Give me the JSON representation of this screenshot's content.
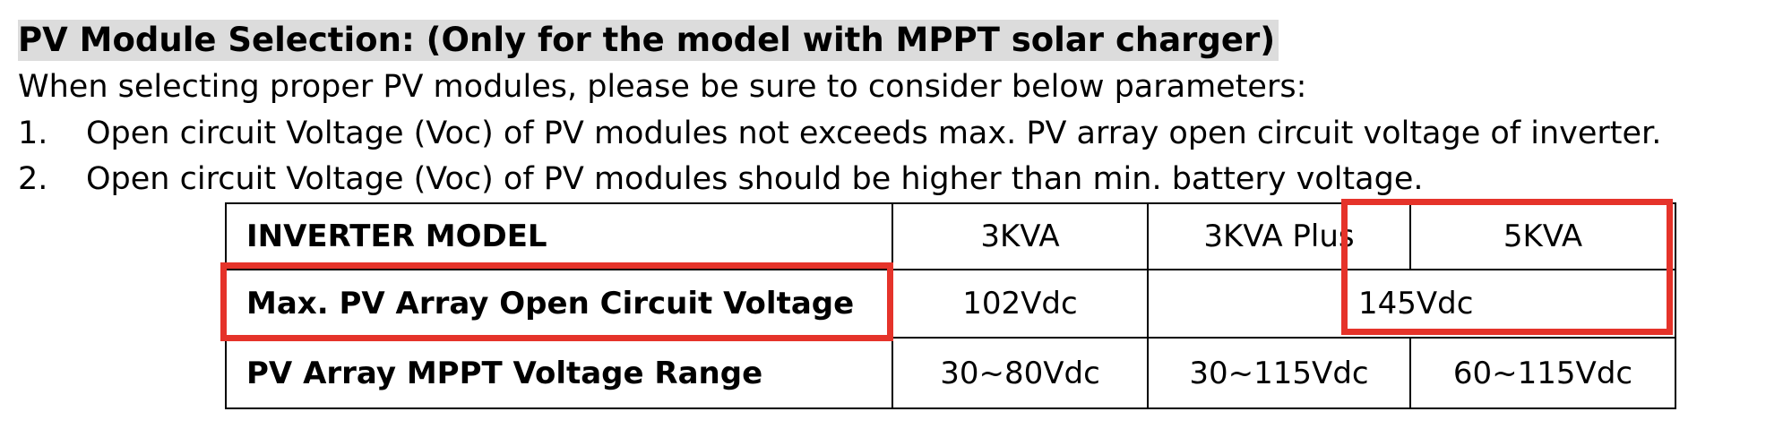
{
  "header": {
    "title": "PV Module Selection: (Only for the model with MPPT solar charger)"
  },
  "intro": "When selecting proper PV modules, please be sure to consider below parameters:",
  "list": [
    {
      "number": "1.",
      "text": "Open circuit Voltage (Voc) of PV modules not exceeds max. PV array open circuit voltage of inverter."
    },
    {
      "number": "2.",
      "text": "Open circuit Voltage (Voc) of PV modules should be higher than min. battery voltage."
    }
  ],
  "table": {
    "rows": [
      [
        "INVERTER MODEL",
        "3KVA",
        "3KVA Plus",
        "5KVA"
      ],
      [
        "Max. PV Array Open Circuit Voltage",
        "102Vdc",
        "145Vdc"
      ],
      [
        "PV Array MPPT Voltage Range",
        "30~80Vdc",
        "30~115Vdc",
        "60~115Vdc"
      ]
    ]
  }
}
